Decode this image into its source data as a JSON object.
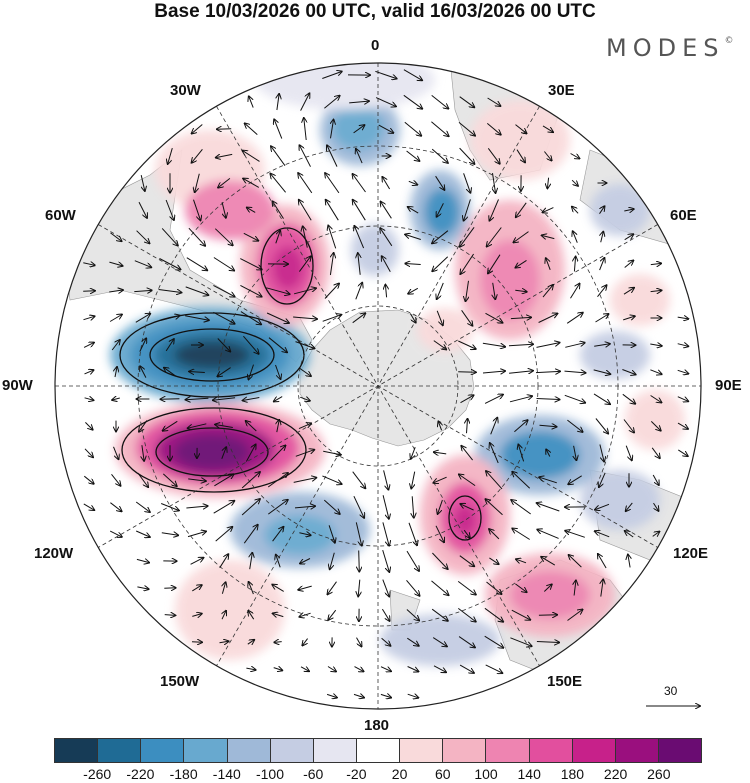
{
  "title": "Base 10/03/2026 00 UTC, valid 16/03/2026 00 UTC",
  "brand": {
    "name": "MODES",
    "mark": "©"
  },
  "longitude_labels": {
    "lon_0": "0",
    "lon_30e": "30E",
    "lon_60e": "60E",
    "lon_90e": "90E",
    "lon_120e": "120E",
    "lon_150e": "150E",
    "lon_180": "180",
    "lon_150w": "150W",
    "lon_120w": "120W",
    "lon_90w": "90W",
    "lon_60w": "60W",
    "lon_30w": "30W"
  },
  "reference_vector": {
    "label": "30"
  },
  "colorbar": {
    "colors": [
      "#163b56",
      "#1f6b95",
      "#3c8ec0",
      "#68a9cf",
      "#9fb9d8",
      "#c5cde3",
      "#e6e6f1",
      "#ffffff",
      "#f9dadb",
      "#f4b4c3",
      "#ee84b1",
      "#e24f9e",
      "#c7218a",
      "#9a0f7e",
      "#6a0c72"
    ],
    "labels": [
      "-260",
      "-220",
      "-180",
      "-140",
      "-100",
      "-60",
      "-20",
      "20",
      "60",
      "100",
      "140",
      "180",
      "220",
      "260"
    ]
  }
}
